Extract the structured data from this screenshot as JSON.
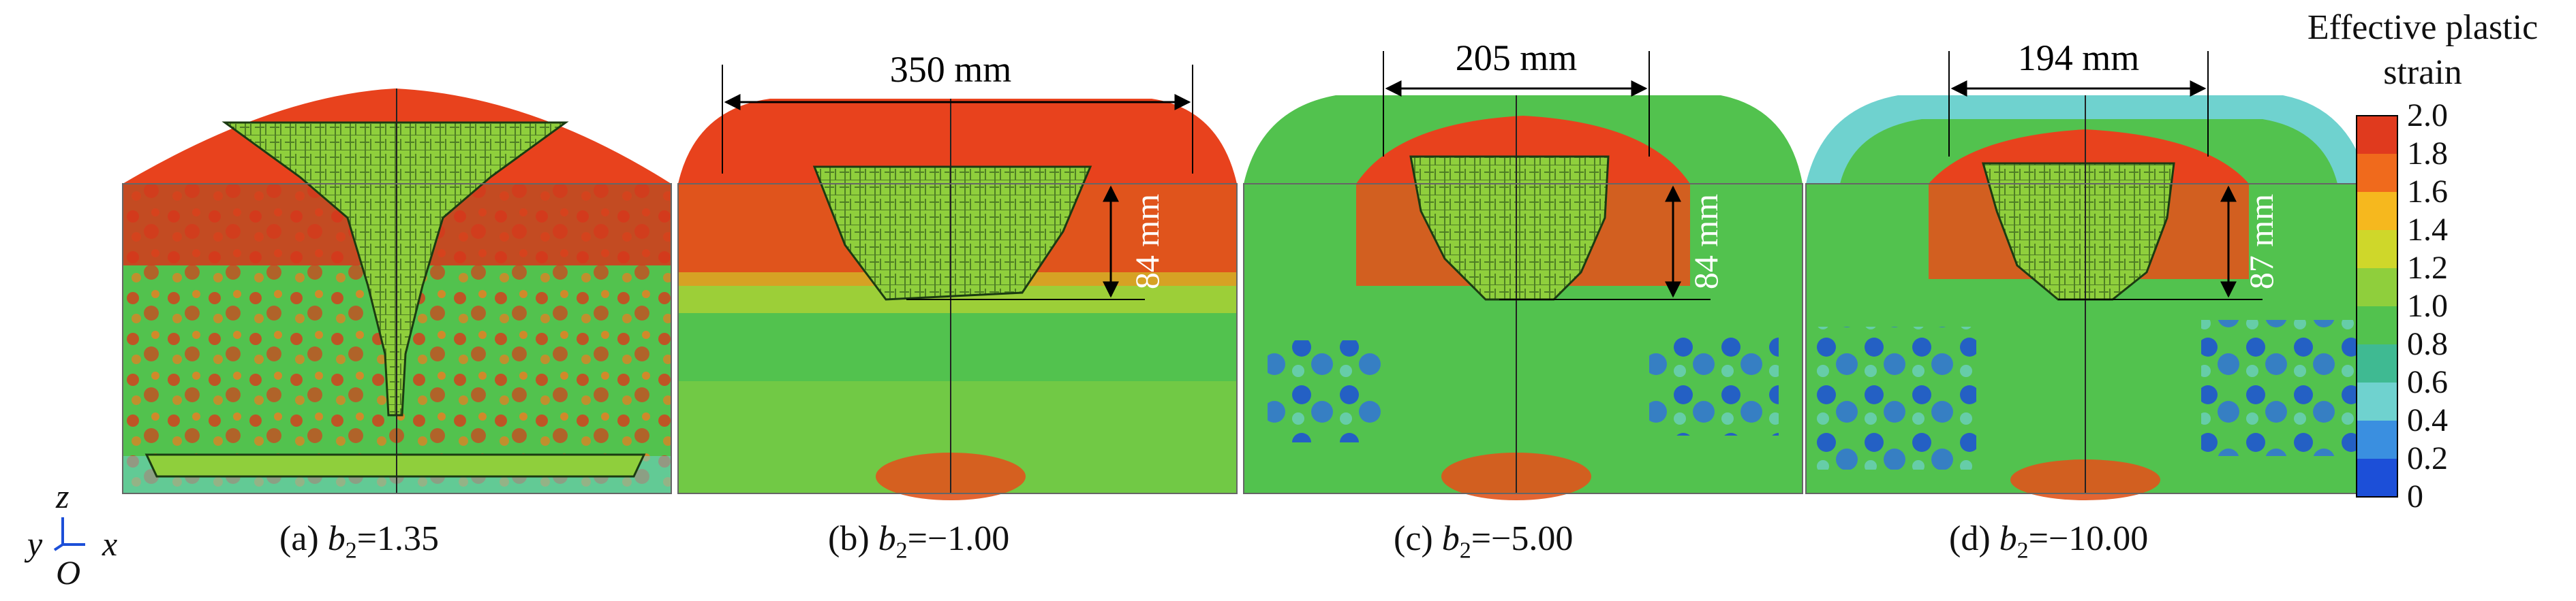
{
  "panels": [
    {
      "id": "a",
      "caption_prefix": "(a) ",
      "b_symbol": "b",
      "b_sub": "2",
      "b_value": "=1.35",
      "width_label": "",
      "depth_label": ""
    },
    {
      "id": "b",
      "caption_prefix": "(b) ",
      "b_symbol": "b",
      "b_sub": "2",
      "b_value": "=−1.00",
      "width_label": "350 mm",
      "depth_label": "84 mm"
    },
    {
      "id": "c",
      "caption_prefix": "(c) ",
      "b_symbol": "b",
      "b_sub": "2",
      "b_value": "=−5.00",
      "width_label": "205 mm",
      "depth_label": "84 mm"
    },
    {
      "id": "d",
      "caption_prefix": "(d) ",
      "b_symbol": "b",
      "b_sub": "2",
      "b_value": "=−10.00",
      "width_label": "194 mm",
      "depth_label": "87 mm"
    }
  ],
  "legend": {
    "title_line1": "Effective plastic",
    "title_line2": "strain",
    "ticks": [
      "2.0",
      "1.8",
      "1.6",
      "1.4",
      "1.2",
      "1.0",
      "0.8",
      "0.6",
      "0.4",
      "0.2",
      "0"
    ],
    "colors": [
      "#e03a1e",
      "#f06a1c",
      "#f6b81e",
      "#cfd72a",
      "#8fcf3c",
      "#52c24e",
      "#3fba92",
      "#6fd2cf",
      "#3a8fe0",
      "#1c4fd8"
    ]
  },
  "axes": {
    "z": "z",
    "y": "y",
    "x": "x",
    "origin": "O"
  }
}
